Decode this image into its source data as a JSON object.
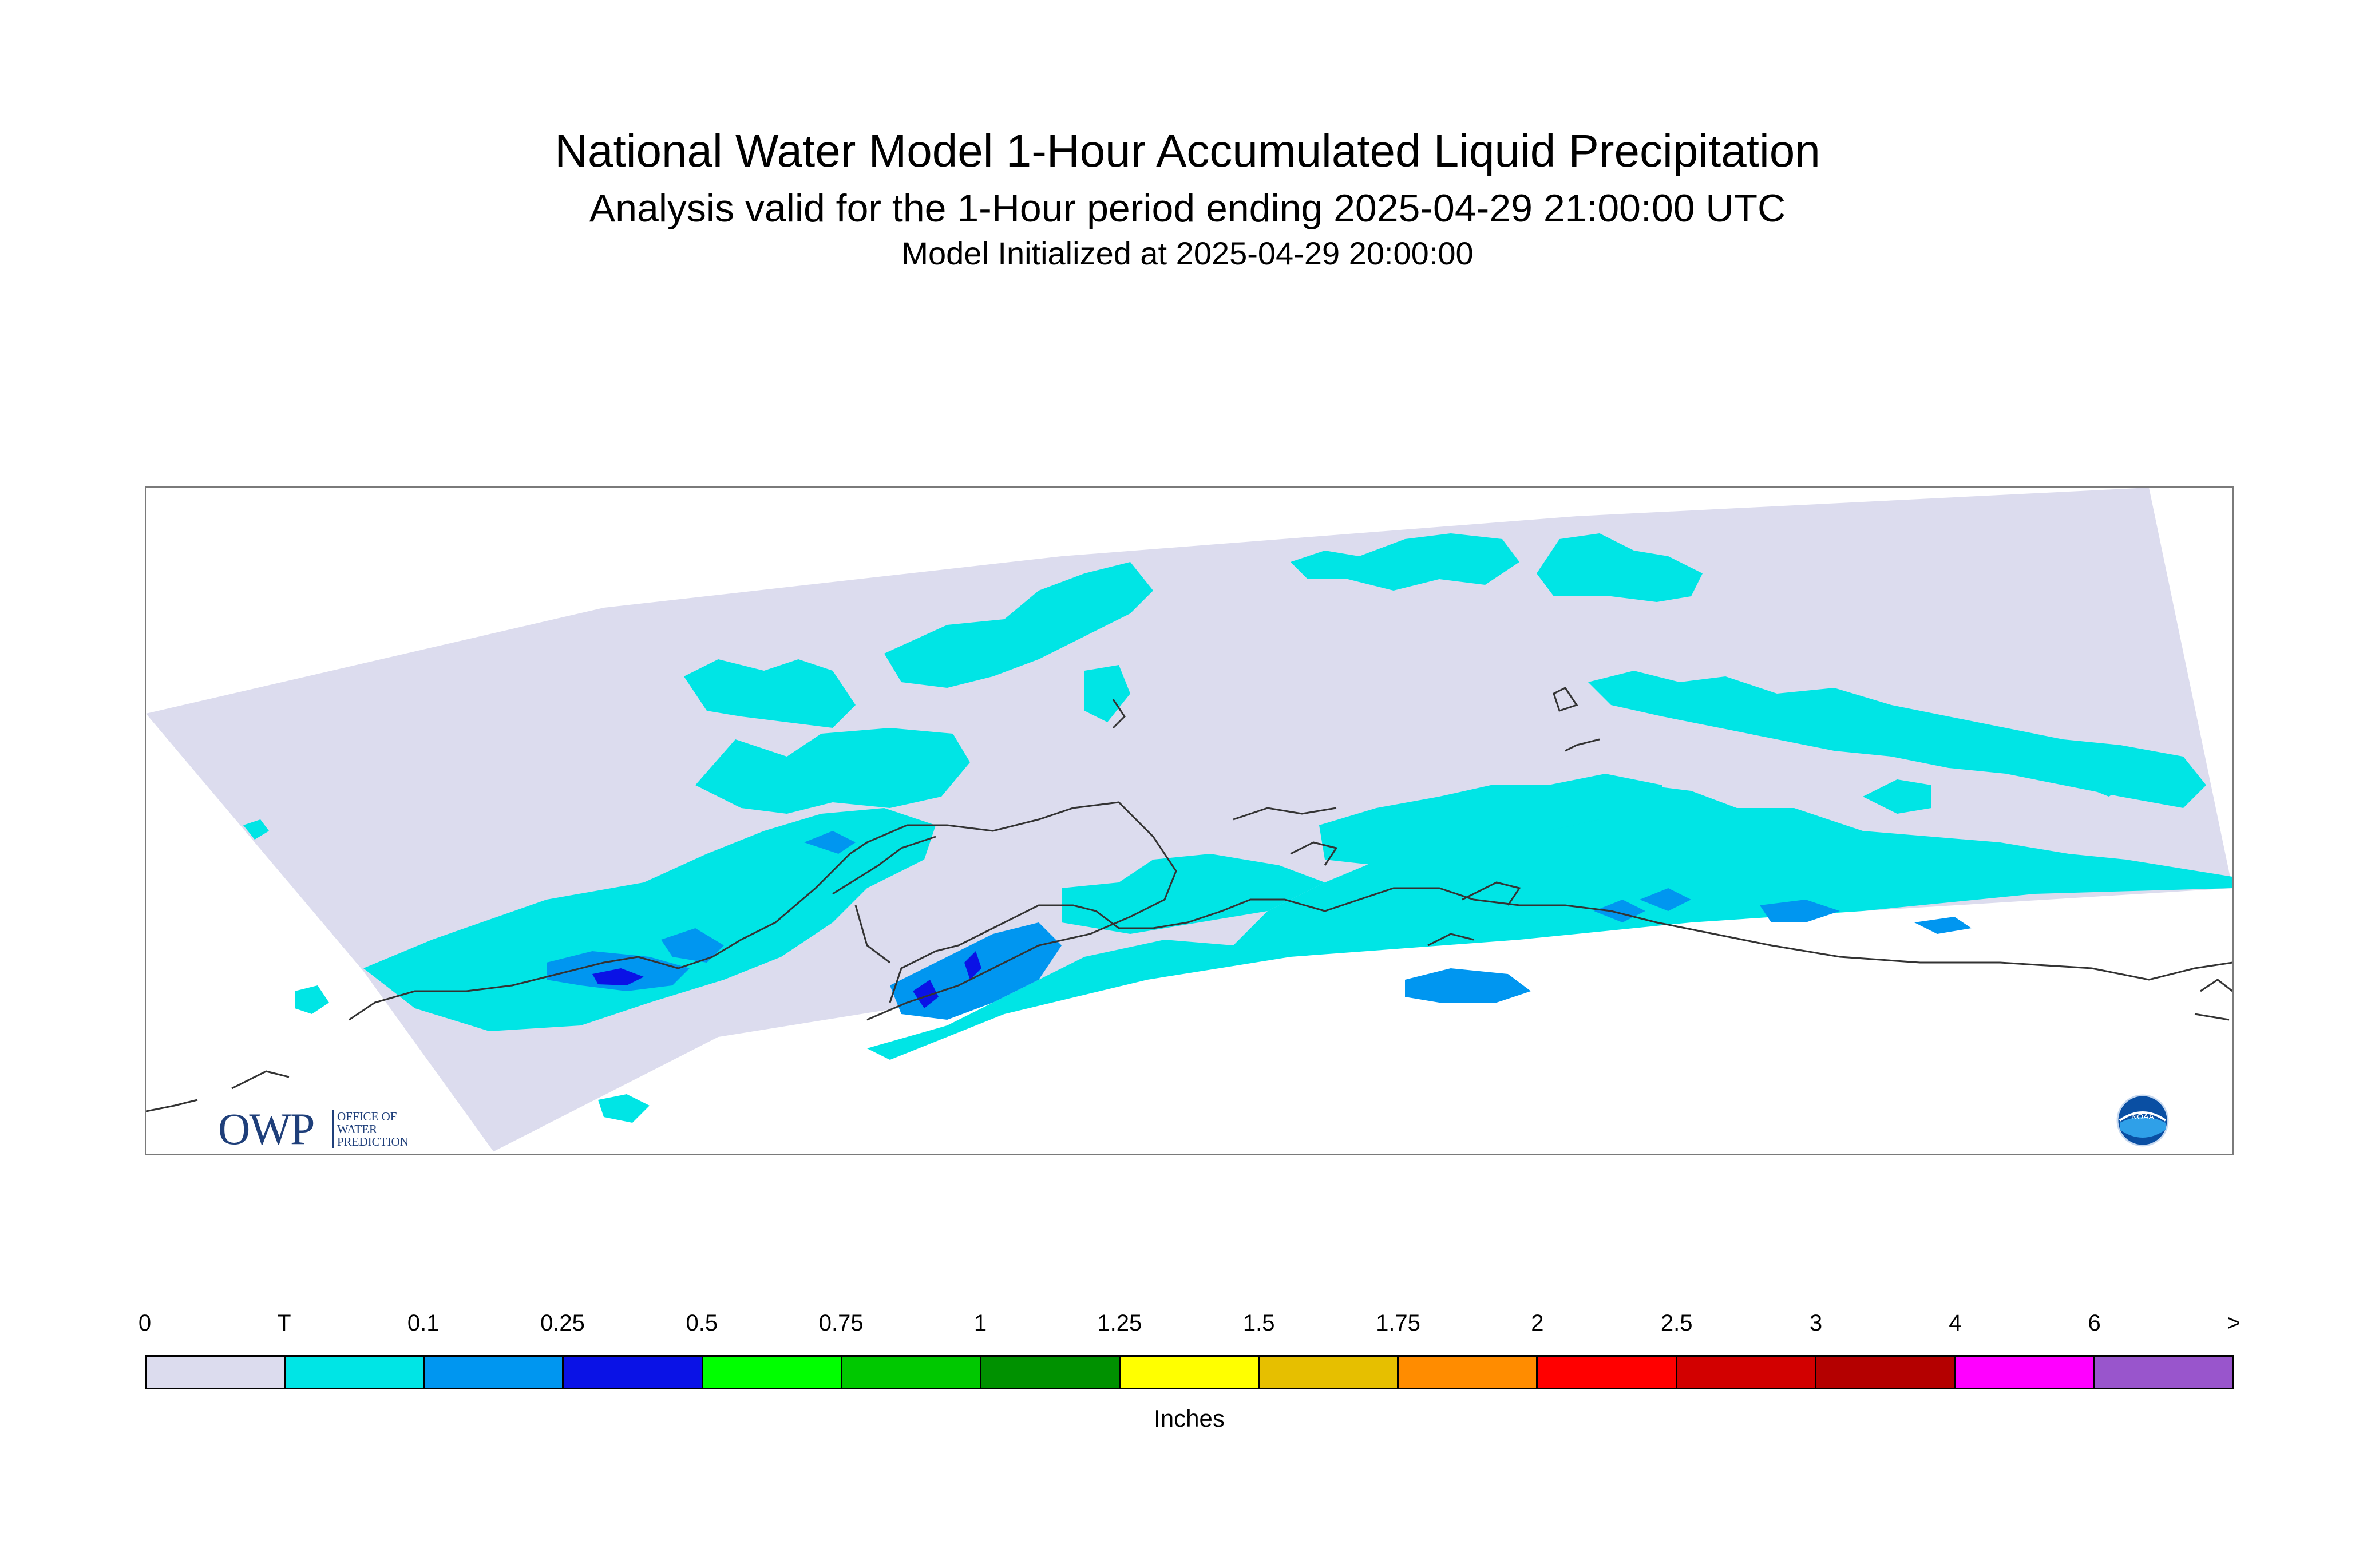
{
  "title": {
    "main": "National Water Model 1-Hour Accumulated Liquid Precipitation",
    "sub": "Analysis valid for the 1-Hour period ending 2025-04-29 21:00:00 UTC",
    "init": "Model Initialized at 2025-04-29 20:00:00"
  },
  "map": {
    "region": "Alaska",
    "domain_fill_color": "#dcdcee",
    "precip_colors": {
      "trace": "#00e5e5",
      "light": "#0096f0",
      "moderate": "#0a12e6"
    },
    "coastline_color": "#333333"
  },
  "logos": {
    "owp": {
      "letters": "OWP",
      "line1": "OFFICE OF",
      "line2": "WATER",
      "line3": "PREDICTION",
      "icon": "owp-logo"
    },
    "noaa": {
      "text": "NOAA",
      "icon": "noaa-logo"
    }
  },
  "legend": {
    "tick_labels": [
      "0",
      "T",
      "0.1",
      "0.25",
      "0.5",
      "0.75",
      "1",
      "1.25",
      "1.5",
      "1.75",
      "2",
      "2.5",
      "3",
      "4",
      "6",
      ">"
    ],
    "colors": [
      "#dcdcee",
      "#00e5e5",
      "#0096f0",
      "#0a12e6",
      "#00ff00",
      "#00c800",
      "#009100",
      "#ffff00",
      "#e6bf00",
      "#ff8c00",
      "#ff0000",
      "#d20000",
      "#b40000",
      "#ff00ff",
      "#9955cc"
    ],
    "units": "Inches"
  }
}
